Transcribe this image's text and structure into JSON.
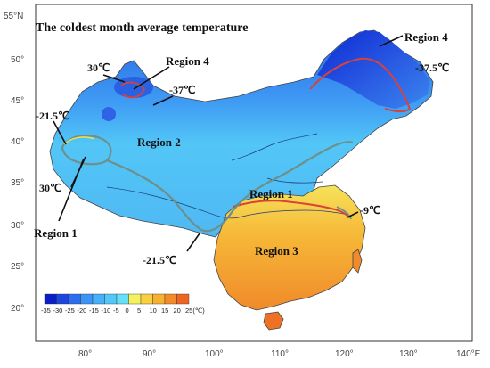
{
  "title": "The coldest month average temperature",
  "lat_ticks": [
    "55°N",
    "50°",
    "45°",
    "40°",
    "35°",
    "30°",
    "25°",
    "20°"
  ],
  "lon_ticks": [
    "80°",
    "90°",
    "100°",
    "110°",
    "120°",
    "130°",
    "140°E"
  ],
  "region_labels": {
    "r4_east": "Region 4",
    "r4_west": "Region 4",
    "r2": "Region 2",
    "r1_east": "Region 1",
    "r1_west": "Region 1",
    "r3": "Region 3"
  },
  "temp_labels": {
    "t_ne": "-37.5℃",
    "t_nw_37": "-37℃",
    "t_nw_30": "30℃",
    "t_w_215": "-21.5℃",
    "t_w_30": "30℃",
    "t_s_215": "-21.5℃",
    "t_e_9": "-9℃"
  },
  "colorbar": {
    "labels": [
      "-35",
      "-30",
      "-25",
      "-20",
      "-15",
      "-10",
      "-5",
      "0",
      "5",
      "10",
      "15",
      "20",
      "25(℃)"
    ],
    "colors": [
      "#0a1ec8",
      "#1c46dc",
      "#2e6eee",
      "#3c94f6",
      "#46b0f8",
      "#52c8f8",
      "#66e0f8",
      "#f4f060",
      "#f8d040",
      "#f8b030",
      "#f48a28",
      "#ee6420"
    ]
  },
  "colors": {
    "region_boundary_red": "#d8423a",
    "region_boundary_gray": "#6f8f8a",
    "region_boundary_yellow": "#e8e050"
  }
}
